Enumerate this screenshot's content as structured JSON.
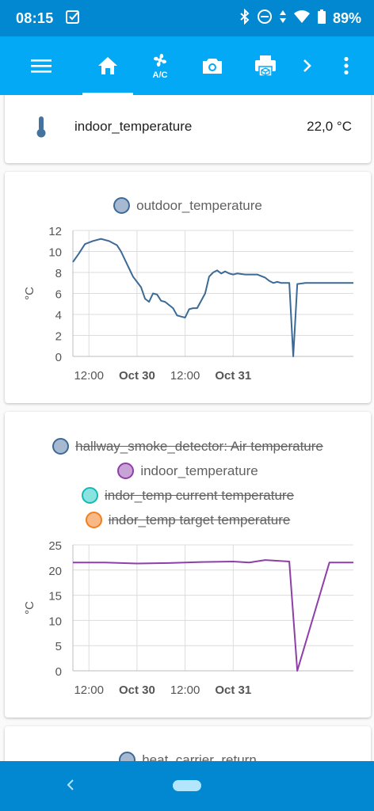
{
  "status_bar": {
    "time": "08:15",
    "battery": "89%",
    "icons": [
      "checkbox-notification-icon",
      "bluetooth-icon",
      "do-not-disturb-icon",
      "wifi-icon",
      "battery-icon"
    ]
  },
  "toolbar": {
    "items": [
      {
        "name": "menu-icon"
      },
      {
        "name": "home-icon",
        "active": true
      },
      {
        "name": "ac-fan-icon",
        "label": "A/C"
      },
      {
        "name": "camera-icon"
      },
      {
        "name": "printer-3d-icon"
      },
      {
        "name": "chevron-right-icon"
      },
      {
        "name": "more-vertical-icon"
      }
    ]
  },
  "entity_card": {
    "icon": "thermometer-icon",
    "name": "indoor_temperature",
    "value": "22,0 °C"
  },
  "colors": {
    "header": "#03a9f4",
    "status_bar": "#0288d1",
    "outdoor_line": "#3b6a96",
    "indoor_line": "#8e3fa8"
  },
  "chart_outdoor": {
    "legend": [
      {
        "name": "outdoor_temperature",
        "fill": "#a7b9d1",
        "stroke": "#3b6a96",
        "hidden": false
      }
    ],
    "ylabel": "°C",
    "y_ticks": [
      "12",
      "10",
      "8",
      "6",
      "4",
      "2",
      "0"
    ],
    "x_ticks": [
      {
        "label": "12:00",
        "bold": false
      },
      {
        "label": "Oct 30",
        "bold": true
      },
      {
        "label": "12:00",
        "bold": false
      },
      {
        "label": "Oct 31",
        "bold": true
      }
    ]
  },
  "chart_indoor": {
    "legend": [
      {
        "name": "hallway_smoke_detector: Air temperature",
        "fill": "#a7b9d1",
        "stroke": "#3b6a96",
        "hidden": true
      },
      {
        "name": "indoor_temperature",
        "fill": "#c9a3d6",
        "stroke": "#8e3fa8",
        "hidden": false
      },
      {
        "name": "indor_temp current temperature",
        "fill": "#8be3e0",
        "stroke": "#17b8b3",
        "hidden": true
      },
      {
        "name": "indor_temp target temperature",
        "fill": "#f9b987",
        "stroke": "#f07f20",
        "hidden": true
      }
    ],
    "ylabel": "°C",
    "y_ticks": [
      "25",
      "20",
      "15",
      "10",
      "5",
      "0"
    ],
    "x_ticks": [
      {
        "label": "12:00",
        "bold": false
      },
      {
        "label": "Oct 30",
        "bold": true
      },
      {
        "label": "12:00",
        "bold": false
      },
      {
        "label": "Oct 31",
        "bold": true
      }
    ]
  },
  "next_card": {
    "legend": [
      {
        "name": "heat_carrier_return",
        "fill": "#a7b9d1",
        "stroke": "#3b6a96",
        "hidden": false
      }
    ]
  },
  "chart_data": [
    {
      "type": "line",
      "title": "",
      "ylabel": "°C",
      "ylim": [
        0,
        12
      ],
      "x_ticks": [
        "12:00",
        "Oct 30",
        "12:00",
        "Oct 31"
      ],
      "series": [
        {
          "name": "outdoor_temperature",
          "x_hours": [
            0,
            1.5,
            3,
            5,
            7,
            9,
            11,
            12,
            13,
            15,
            17,
            18,
            19,
            20,
            21,
            22,
            23,
            25,
            26,
            27,
            28,
            29,
            30,
            31,
            33,
            34,
            35,
            36,
            37,
            38,
            39,
            40,
            41,
            43,
            45,
            46,
            48,
            49,
            50,
            51,
            52,
            53,
            54,
            55,
            56,
            58,
            60,
            62,
            63,
            64,
            64.05,
            64.1,
            66,
            68,
            70
          ],
          "values": [
            9.0,
            9.8,
            10.7,
            11.0,
            11.2,
            11.0,
            10.6,
            10.0,
            9.2,
            7.6,
            6.6,
            5.5,
            5.2,
            6.0,
            5.9,
            5.3,
            5.2,
            4.6,
            3.9,
            3.8,
            3.7,
            4.5,
            4.6,
            4.6,
            6.0,
            7.6,
            8.0,
            8.2,
            7.9,
            8.1,
            7.9,
            7.8,
            7.9,
            7.8,
            7.8,
            7.8,
            7.5,
            7.2,
            7.0,
            7.1,
            7.0,
            7.0,
            7.0,
            0.0,
            6.9,
            7.0,
            7.0,
            7.0,
            7.0,
            7.0,
            7.0,
            7.0,
            7.0,
            7.0,
            7.0
          ]
        }
      ]
    },
    {
      "type": "line",
      "title": "",
      "ylabel": "°C",
      "ylim": [
        0,
        25
      ],
      "x_ticks": [
        "12:00",
        "Oct 30",
        "12:00",
        "Oct 31"
      ],
      "series": [
        {
          "name": "indoor_temperature",
          "x_hours": [
            0,
            8,
            16,
            24,
            32,
            40,
            44,
            48,
            52,
            54,
            56,
            64,
            70
          ],
          "values": [
            21.5,
            21.5,
            21.3,
            21.4,
            21.6,
            21.7,
            21.5,
            22.0,
            21.8,
            21.7,
            0.0,
            21.5,
            21.5
          ]
        }
      ]
    }
  ]
}
